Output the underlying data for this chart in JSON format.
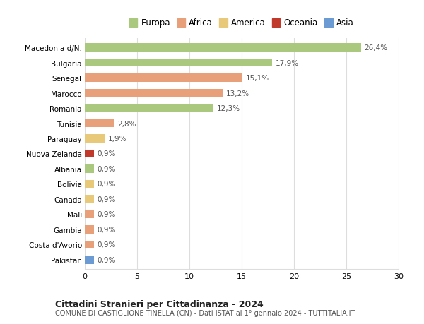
{
  "categories": [
    "Macedonia d/N.",
    "Bulgaria",
    "Senegal",
    "Marocco",
    "Romania",
    "Tunisia",
    "Paraguay",
    "Nuova Zelanda",
    "Albania",
    "Bolivia",
    "Canada",
    "Mali",
    "Gambia",
    "Costa d'Avorio",
    "Pakistan"
  ],
  "values": [
    26.4,
    17.9,
    15.1,
    13.2,
    12.3,
    2.8,
    1.9,
    0.9,
    0.9,
    0.9,
    0.9,
    0.9,
    0.9,
    0.9,
    0.9
  ],
  "labels": [
    "26,4%",
    "17,9%",
    "15,1%",
    "13,2%",
    "12,3%",
    "2,8%",
    "1,9%",
    "0,9%",
    "0,9%",
    "0,9%",
    "0,9%",
    "0,9%",
    "0,9%",
    "0,9%",
    "0,9%"
  ],
  "colors": [
    "#aac97e",
    "#aac97e",
    "#e8a07a",
    "#e8a07a",
    "#aac97e",
    "#e8a07a",
    "#e8c97a",
    "#c0392b",
    "#aac97e",
    "#e8c97a",
    "#e8c97a",
    "#e8a07a",
    "#e8a07a",
    "#e8a07a",
    "#6b9bd2"
  ],
  "legend": [
    {
      "label": "Europa",
      "color": "#aac97e"
    },
    {
      "label": "Africa",
      "color": "#e8a07a"
    },
    {
      "label": "America",
      "color": "#e8c97a"
    },
    {
      "label": "Oceania",
      "color": "#c0392b"
    },
    {
      "label": "Asia",
      "color": "#6b9bd2"
    }
  ],
  "xlim": [
    0,
    30
  ],
  "xticks": [
    0,
    5,
    10,
    15,
    20,
    25,
    30
  ],
  "title": "Cittadini Stranieri per Cittadinanza - 2024",
  "subtitle": "COMUNE DI CASTIGLIONE TINELLA (CN) - Dati ISTAT al 1° gennaio 2024 - TUTTITALIA.IT",
  "background_color": "#ffffff",
  "grid_color": "#dddddd",
  "bar_height": 0.55
}
